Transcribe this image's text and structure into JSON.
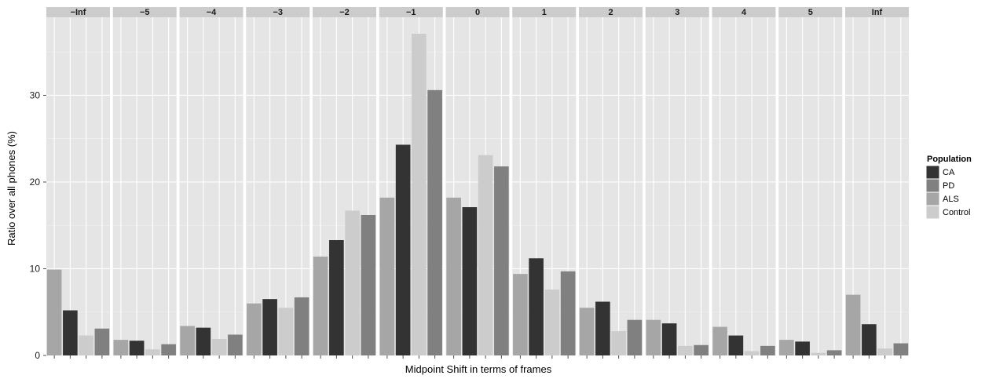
{
  "chart_data": {
    "type": "bar",
    "facet_by": "Midpoint Shift in terms of frames",
    "panels": [
      "−Inf",
      "−5",
      "−4",
      "−3",
      "−2",
      "−1",
      "0",
      "1",
      "2",
      "3",
      "4",
      "5",
      "Inf"
    ],
    "bar_order": [
      "ALS",
      "CA",
      "Control",
      "PD"
    ],
    "series": [
      {
        "name": "CA",
        "color": "#333333",
        "values": [
          5.2,
          1.7,
          3.2,
          6.5,
          13.3,
          24.3,
          17.1,
          11.2,
          6.2,
          3.7,
          2.3,
          1.6,
          3.6
        ]
      },
      {
        "name": "PD",
        "color": "#808080",
        "values": [
          3.1,
          1.3,
          2.4,
          6.7,
          16.2,
          30.6,
          21.8,
          9.7,
          4.1,
          1.2,
          1.1,
          0.6,
          1.4
        ]
      },
      {
        "name": "ALS",
        "color": "#a6a6a6",
        "values": [
          9.9,
          1.8,
          3.4,
          6.0,
          11.4,
          18.2,
          18.2,
          9.4,
          5.5,
          4.1,
          3.3,
          1.8,
          7.0
        ]
      },
      {
        "name": "Control",
        "color": "#cccccc",
        "values": [
          2.3,
          0.7,
          1.9,
          5.5,
          16.7,
          37.1,
          23.1,
          7.6,
          2.8,
          1.1,
          0.5,
          0.3,
          0.8
        ]
      }
    ],
    "ylabel": "Ratio over all phones (%)",
    "xlabel": "Midpoint Shift in terms of frames",
    "ylim": [
      0,
      39
    ],
    "yticks": [
      0,
      10,
      20,
      30
    ],
    "legend": {
      "title": "Population",
      "entries": [
        "CA",
        "PD",
        "ALS",
        "Control"
      ],
      "position": "right"
    },
    "grid": true,
    "panel_background": "#e5e5e5",
    "strip_background": "#cccccc"
  }
}
